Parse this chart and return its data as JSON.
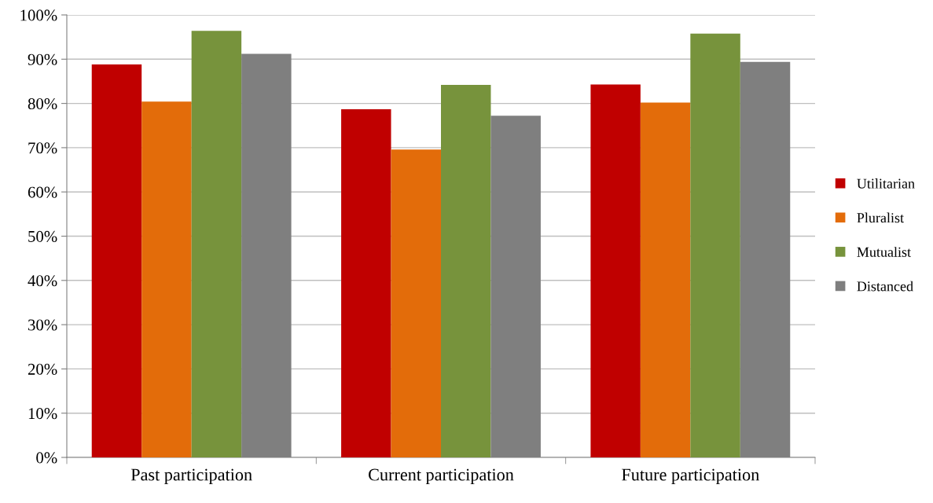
{
  "chart_data": {
    "type": "bar",
    "categories": [
      "Past participation",
      "Current participation",
      "Future participation"
    ],
    "series": [
      {
        "name": "Utilitarian",
        "color": "#c00000",
        "values": [
          88.8,
          78.7,
          84.3
        ]
      },
      {
        "name": "Pluralist",
        "color": "#e36c0a",
        "values": [
          80.4,
          69.6,
          80.2
        ]
      },
      {
        "name": "Mutualist",
        "color": "#77933c",
        "values": [
          96.4,
          84.2,
          95.8
        ]
      },
      {
        "name": "Distanced",
        "color": "#7f7f7f",
        "values": [
          91.2,
          77.2,
          89.4
        ]
      }
    ],
    "ylim": [
      0,
      100
    ],
    "yticks": [
      {
        "value": 0,
        "label": "0%"
      },
      {
        "value": 10,
        "label": "10%"
      },
      {
        "value": 20,
        "label": "20%"
      },
      {
        "value": 30,
        "label": "30%"
      },
      {
        "value": 40,
        "label": "40%"
      },
      {
        "value": 50,
        "label": "50%"
      },
      {
        "value": 60,
        "label": "60%"
      },
      {
        "value": 70,
        "label": "70%"
      },
      {
        "value": 80,
        "label": "80%"
      },
      {
        "value": 90,
        "label": "90%"
      },
      {
        "value": 100,
        "label": "100%"
      }
    ],
    "grid": "y",
    "legend": "right"
  }
}
